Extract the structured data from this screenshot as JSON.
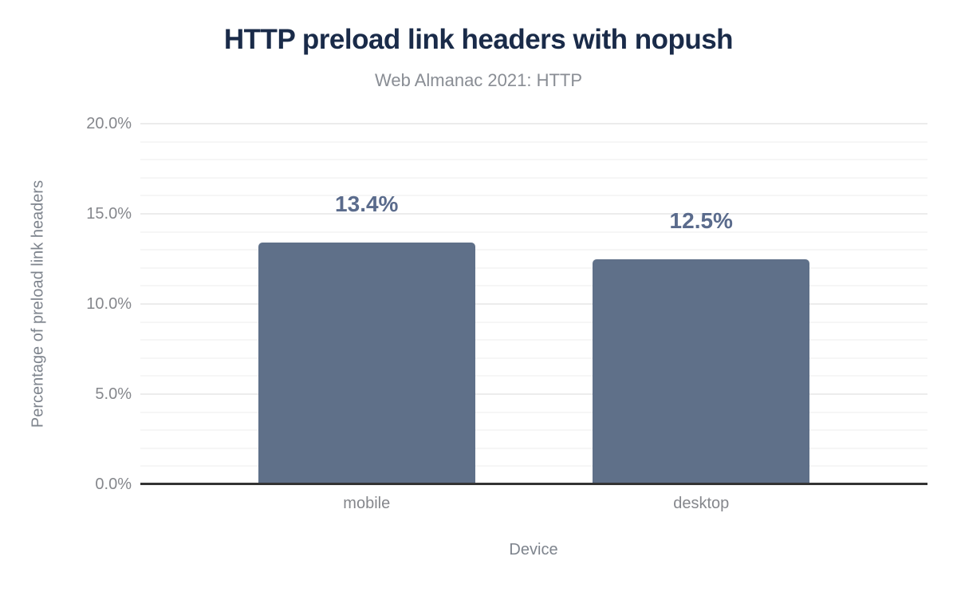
{
  "chart_data": {
    "type": "bar",
    "title": "HTTP preload link headers with nopush",
    "subtitle": "Web Almanac 2021: HTTP",
    "xlabel": "Device",
    "ylabel": "Percentage of preload link headers",
    "categories": [
      "mobile",
      "desktop"
    ],
    "values": [
      13.4,
      12.5
    ],
    "value_labels": [
      "13.4%",
      "12.5%"
    ],
    "ylim": [
      0,
      20
    ],
    "yticks": [
      {
        "value": 0,
        "label": "0.0%"
      },
      {
        "value": 5,
        "label": "5.0%"
      },
      {
        "value": 10,
        "label": "10.0%"
      },
      {
        "value": 15,
        "label": "15.0%"
      },
      {
        "value": 20,
        "label": "20.0%"
      }
    ],
    "grid": {
      "minor_step": 1,
      "major_step": 5,
      "visible": true
    },
    "legend": false,
    "colors": {
      "bar": "#5F7089",
      "value_label": "#5A6B8C",
      "title": "#1A2B49",
      "subtitle": "#898D94",
      "tick_label": "#85878C",
      "axis_title": "#7E848D",
      "minor_grid": "#F6F6F6",
      "major_grid": "#ECECEC",
      "axis_line": "#333333"
    }
  }
}
